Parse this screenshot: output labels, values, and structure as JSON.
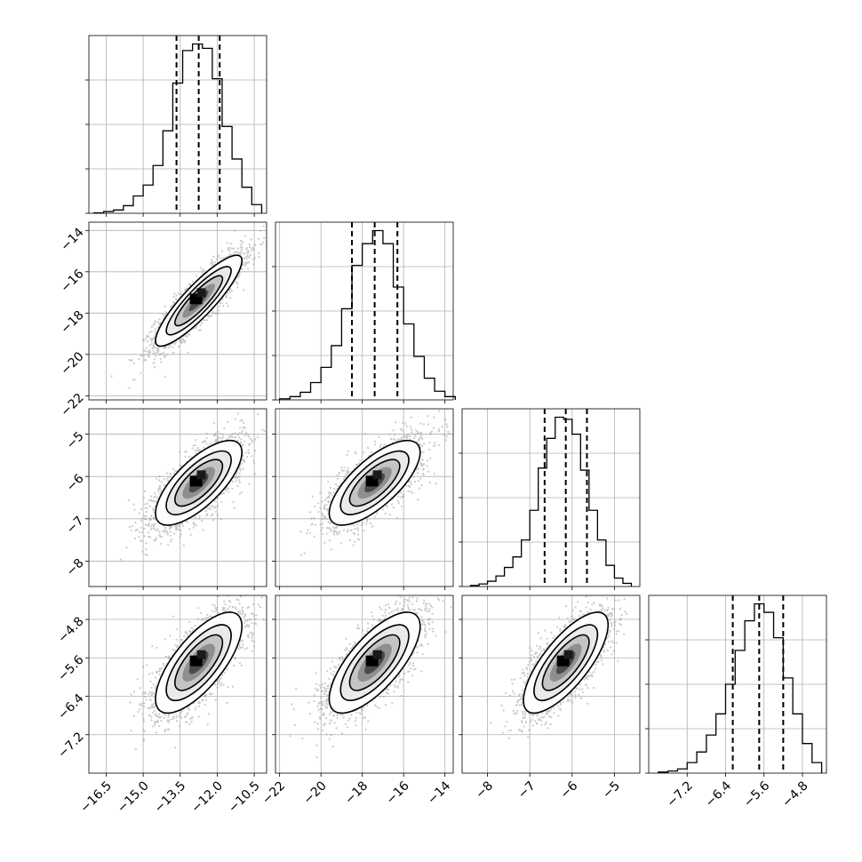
{
  "chart_data": {
    "type": "corner",
    "parameters": [
      {
        "axis_range": [
          -17.2,
          -10.0
        ],
        "ticks": [
          -16.5,
          -15.0,
          -13.5,
          -12.0,
          -10.5
        ],
        "tick_labels": [
          "−16.5",
          "−15.0",
          "−13.5",
          "−12.0",
          "−10.5"
        ],
        "quantiles": [
          -13.65,
          -12.75,
          -11.9
        ],
        "histogram": {
          "bin_edges": [
            -17.0,
            -16.6,
            -16.2,
            -15.8,
            -15.4,
            -15.0,
            -14.6,
            -14.2,
            -13.8,
            -13.4,
            -13.0,
            -12.6,
            -12.2,
            -11.8,
            -11.4,
            -11.0,
            -10.6,
            -10.2
          ],
          "heights": [
            0.2,
            0.8,
            1.5,
            3.5,
            8,
            13,
            22,
            38,
            60,
            75,
            78,
            76,
            62,
            40,
            25,
            12,
            4
          ]
        }
      },
      {
        "axis_range": [
          -22.2,
          -13.6
        ],
        "ticks": [
          -22,
          -20,
          -18,
          -16,
          -14
        ],
        "tick_labels": [
          "−22",
          "−20",
          "−18",
          "−16",
          "−14"
        ],
        "quantiles": [
          -18.5,
          -17.4,
          -16.3
        ],
        "histogram": {
          "bin_edges": [
            -22.0,
            -21.5,
            -21.0,
            -20.5,
            -20.0,
            -19.5,
            -19.0,
            -18.5,
            -18.0,
            -17.5,
            -17.0,
            -16.5,
            -16.0,
            -15.5,
            -15.0,
            -14.5,
            -14.0,
            -13.5
          ],
          "heights": [
            0.5,
            1.5,
            3.5,
            8,
            15,
            25,
            42,
            62,
            72,
            78,
            72,
            52,
            35,
            20,
            10,
            4,
            1.5
          ]
        }
      },
      {
        "axis_range": [
          -8.6,
          -4.4
        ],
        "ticks": [
          -8,
          -7,
          -6,
          -5
        ],
        "tick_labels": [
          "−8",
          "−7",
          "−6",
          "−5"
        ],
        "quantiles": [
          -6.65,
          -6.15,
          -5.65
        ],
        "histogram": {
          "bin_edges": [
            -8.4,
            -8.2,
            -8.0,
            -7.8,
            -7.6,
            -7.4,
            -7.2,
            -7.0,
            -6.8,
            -6.6,
            -6.4,
            -6.2,
            -6.0,
            -5.8,
            -5.6,
            -5.4,
            -5.2,
            -5.0,
            -4.8,
            -4.6
          ],
          "heights": [
            0.5,
            1.2,
            2.5,
            5,
            9,
            14,
            22,
            36,
            56,
            70,
            80,
            79,
            72,
            55,
            36,
            22,
            10,
            4,
            1.5
          ]
        }
      },
      {
        "axis_range": [
          -8.0,
          -4.3
        ],
        "ticks": [
          -7.2,
          -6.4,
          -5.6,
          -4.8
        ],
        "tick_labels": [
          "−7.2",
          "−6.4",
          "−5.6",
          "−4.8"
        ],
        "quantiles": [
          -6.25,
          -5.7,
          -5.2
        ],
        "histogram": {
          "bin_edges": [
            -7.8,
            -7.6,
            -7.4,
            -7.2,
            -7.0,
            -6.8,
            -6.6,
            -6.4,
            -6.2,
            -6.0,
            -5.8,
            -5.6,
            -5.4,
            -5.2,
            -5.0,
            -4.8,
            -4.6,
            -4.4
          ],
          "heights": [
            0.5,
            1,
            2,
            5,
            10,
            18,
            28,
            42,
            58,
            72,
            80,
            76,
            64,
            45,
            28,
            14,
            5
          ]
        }
      }
    ],
    "correlations": {
      "1,0": 0.88,
      "2,0": 0.72,
      "2,1": 0.72,
      "3,0": 0.72,
      "3,1": 0.72,
      "3,2": 0.75
    },
    "grid": true,
    "xlabel": "",
    "ylabel": ""
  }
}
